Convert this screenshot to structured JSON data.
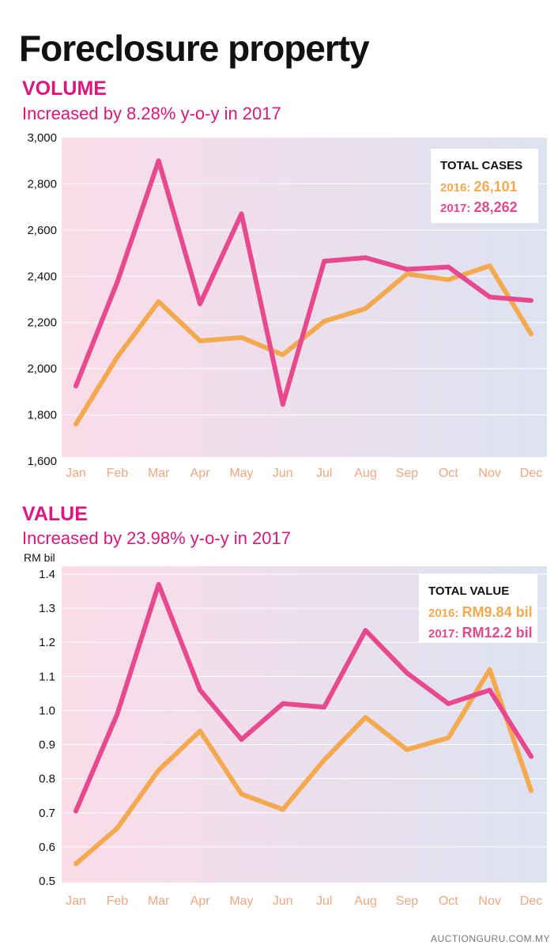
{
  "title": "Foreclosure property",
  "footer": "AUCTIONGURU.COM.MY",
  "colors": {
    "series_2016": "#f5a94e",
    "series_2017": "#e8488e",
    "accent": "#e0157f",
    "panel_left": "#fbdce8",
    "panel_right": "#dde2f1",
    "tick": "#f4a67e"
  },
  "chart_data": [
    {
      "type": "line",
      "title": "VOLUME",
      "subtitle": "Increased by 8.28% y-o-y in 2017",
      "xlabel": "",
      "ylabel": "",
      "ylim": [
        1600,
        3000
      ],
      "yticks": [
        1600,
        1800,
        2000,
        2200,
        2400,
        2600,
        2800,
        3000
      ],
      "ytick_labels": [
        "1,600",
        "1,800",
        "2,000",
        "2,200",
        "2,400",
        "2,600",
        "2,800",
        "3,000"
      ],
      "categories": [
        "Jan",
        "Feb",
        "Mar",
        "Apr",
        "May",
        "Jun",
        "Jul",
        "Aug",
        "Sep",
        "Oct",
        "Nov",
        "Dec"
      ],
      "series": [
        {
          "name": "2016",
          "color": "#f5a94e",
          "values": [
            1760,
            2050,
            2290,
            2120,
            2135,
            2060,
            2205,
            2260,
            2410,
            2385,
            2445,
            2150
          ]
        },
        {
          "name": "2017",
          "color": "#e8488e",
          "values": [
            1925,
            2375,
            2900,
            2280,
            2670,
            1845,
            2465,
            2480,
            2430,
            2440,
            2310,
            2295
          ]
        }
      ],
      "grid": true,
      "legend": {
        "placement": "top-right",
        "heading": "TOTAL CASES",
        "items": [
          {
            "label": "2016:",
            "value": "26,101",
            "color": "#f5a94e"
          },
          {
            "label": "2017:",
            "value": "28,262",
            "color": "#e8488e"
          }
        ]
      }
    },
    {
      "type": "line",
      "title": "VALUE",
      "subtitle": "Increased by 23.98% y-o-y in 2017",
      "xlabel": "",
      "ylabel": "RM bil",
      "ylim": [
        0.5,
        1.4
      ],
      "yticks": [
        0.5,
        0.6,
        0.7,
        0.8,
        0.9,
        1.0,
        1.1,
        1.2,
        1.3,
        1.4
      ],
      "ytick_labels": [
        "0.5",
        "0.6",
        "0.7",
        "0.8",
        "0.9",
        "1.0",
        "1.1",
        "1.2",
        "1.3",
        "1.4"
      ],
      "categories": [
        "Jan",
        "Feb",
        "Mar",
        "Apr",
        "May",
        "Jun",
        "Jul",
        "Aug",
        "Sep",
        "Oct",
        "Nov",
        "Dec"
      ],
      "series": [
        {
          "name": "2016",
          "color": "#f5a94e",
          "values": [
            0.55,
            0.655,
            0.825,
            0.94,
            0.755,
            0.71,
            0.855,
            0.98,
            0.885,
            0.92,
            1.12,
            0.765
          ]
        },
        {
          "name": "2017",
          "color": "#e8488e",
          "values": [
            0.705,
            0.99,
            1.37,
            1.06,
            0.915,
            1.02,
            1.01,
            1.235,
            1.11,
            1.02,
            1.06,
            0.865
          ]
        }
      ],
      "grid": true,
      "legend": {
        "placement": "top-right",
        "heading": "TOTAL VALUE",
        "items": [
          {
            "label": "2016:",
            "value": "RM9.84 bil",
            "color": "#f5a94e"
          },
          {
            "label": "2017:",
            "value": "RM12.2 bil",
            "color": "#e8488e"
          }
        ]
      }
    }
  ]
}
